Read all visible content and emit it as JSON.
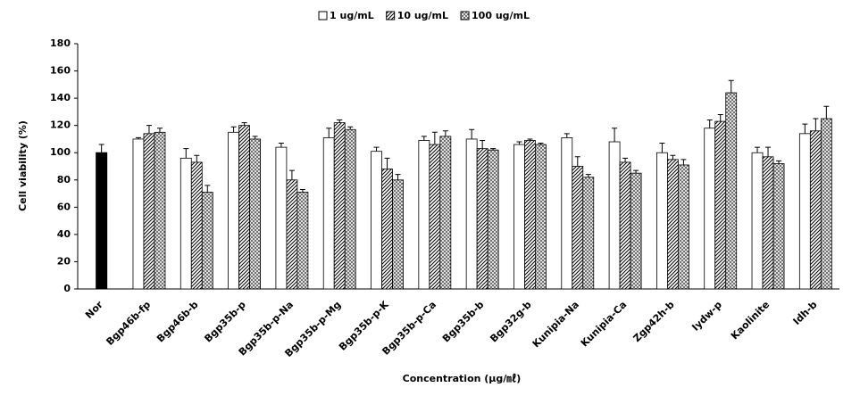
{
  "chart_data": {
    "type": "bar",
    "y_label": "Cell viability (%)",
    "x_label": "Concentration (μg/㎖)",
    "categories": [
      "Nor",
      "Bgp46b-fp",
      "Bgp46b-b",
      "Bgp35b-p",
      "Bgp35b-p-Na",
      "Bgp35b-p-Mg",
      "Bgp35b-p-K",
      "Bgp35b-p-Ca",
      "Bgp35b-b",
      "Bgp32g-b",
      "Kunipia-Na",
      "Kunipia-Ca",
      "Zgp42h-b",
      "Iydw-p",
      "Kaolinite",
      "Idh-b"
    ],
    "control": {
      "value": 100,
      "error": 6,
      "color": "#000000"
    },
    "series": [
      {
        "name": "1 ug/mL",
        "color": "#ffffff",
        "pattern": "none",
        "values": [
          null,
          110,
          96,
          115,
          104,
          111,
          101,
          109,
          110,
          106,
          111,
          108,
          100,
          118,
          100,
          114
        ],
        "errors": [
          null,
          1,
          7,
          4,
          3,
          7,
          3,
          3,
          7,
          2,
          3,
          10,
          7,
          6,
          4,
          7
        ]
      },
      {
        "name": "10 ug/mL",
        "color": "#ffffff",
        "pattern": "hatch",
        "values": [
          null,
          114,
          93,
          120,
          80,
          122,
          88,
          106,
          103,
          109,
          90,
          93,
          95,
          123,
          97,
          116
        ],
        "errors": [
          null,
          6,
          5,
          2,
          7,
          2,
          8,
          9,
          6,
          1,
          7,
          3,
          3,
          5,
          7,
          9
        ]
      },
      {
        "name": "100 ug/mL",
        "color": "#ffffff",
        "pattern": "cross",
        "values": [
          null,
          115,
          71,
          110,
          71,
          117,
          80,
          112,
          102,
          106,
          82,
          85,
          91,
          144,
          92,
          125
        ],
        "errors": [
          null,
          3,
          5,
          2,
          2,
          2,
          4,
          4,
          1,
          1,
          2,
          2,
          4,
          9,
          2,
          9
        ]
      }
    ],
    "ylim": [
      0,
      180
    ],
    "yticks": [
      0,
      20,
      40,
      60,
      80,
      100,
      120,
      140,
      160,
      180
    ]
  }
}
